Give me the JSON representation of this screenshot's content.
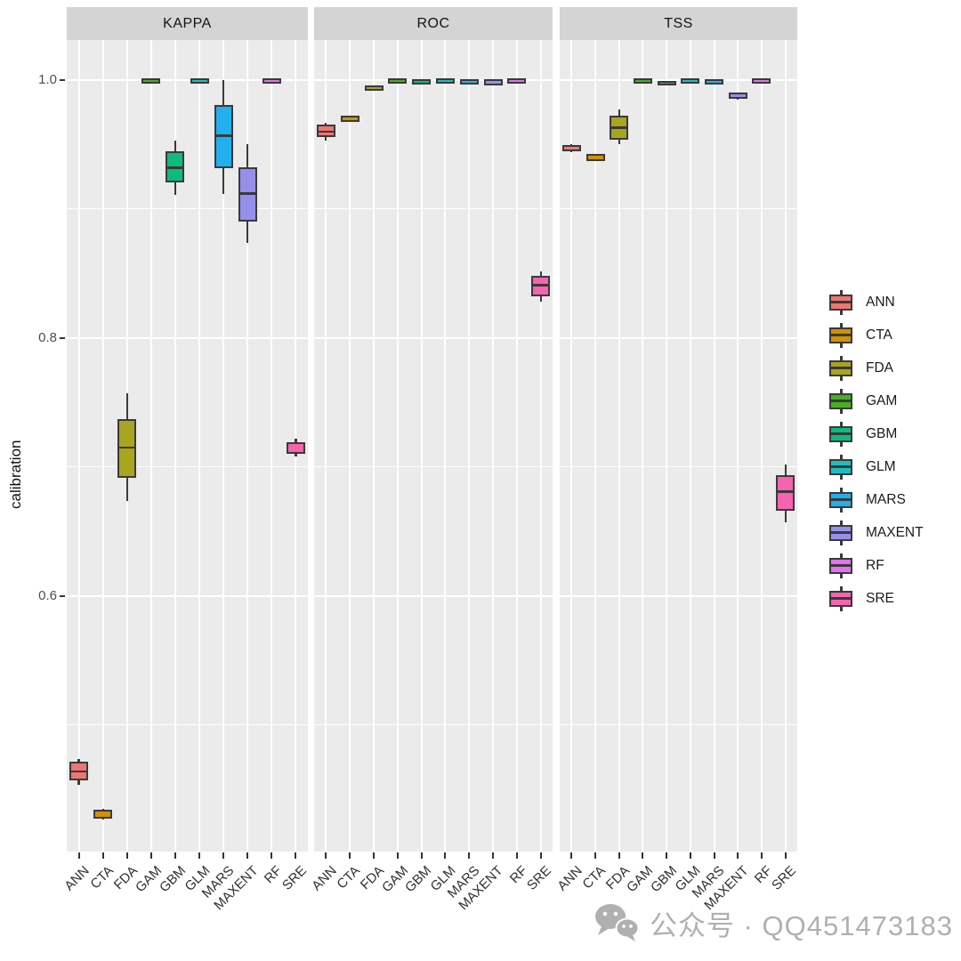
{
  "figure": {
    "y_axis_label": "calibration",
    "y_tick_labels": [
      "1.0",
      "0.8",
      "0.6"
    ],
    "facet_labels": [
      "KAPPA",
      "ROC",
      "TSS"
    ],
    "x_category_labels": [
      "ANN",
      "CTA",
      "FDA",
      "GAM",
      "GBM",
      "GLM",
      "MARS",
      "MAXENT",
      "RF",
      "SRE"
    ]
  },
  "legend": {
    "position": "right",
    "items": [
      {
        "label": "ANN",
        "color": "#EE7572"
      },
      {
        "label": "CTA",
        "color": "#D39200"
      },
      {
        "label": "FDA",
        "color": "#A9A51E"
      },
      {
        "label": "GAM",
        "color": "#47B021"
      },
      {
        "label": "GBM",
        "color": "#0FBA7B"
      },
      {
        "label": "GLM",
        "color": "#1DBEC2"
      },
      {
        "label": "MARS",
        "color": "#23AFEE"
      },
      {
        "label": "MAXENT",
        "color": "#9590EC"
      },
      {
        "label": "RF",
        "color": "#E272EE"
      },
      {
        "label": "SRE",
        "color": "#F564AE"
      }
    ]
  },
  "watermark": {
    "icon": "wechat-icon",
    "text": "公众号 · QQ451473183"
  },
  "colors": {
    "panel_bg": "#EBEBEB",
    "strip_bg": "#D4D4D4",
    "gridline": "#FFFFFF",
    "box_border": "#3A3A3A",
    "axis_text": "#4D4D4D",
    "strip_text": "#141414",
    "watermark_text": "#B0B0B0"
  },
  "chart_data": {
    "type": "boxplot",
    "title": "",
    "xlabel": "",
    "ylabel": "calibration",
    "ylim": [
      0.4,
      1.03
    ],
    "grid": "on",
    "legend_position": "right",
    "y_major_ticks": [
      1.0,
      0.8,
      0.6
    ],
    "y_minor_gridlines": [
      0.9,
      0.7,
      0.5
    ],
    "categories": [
      "ANN",
      "CTA",
      "FDA",
      "GAM",
      "GBM",
      "GLM",
      "MARS",
      "MAXENT",
      "RF",
      "SRE"
    ],
    "facets": [
      {
        "name": "KAPPA",
        "boxes": [
          {
            "model": "ANN",
            "min": 0.454,
            "q1": 0.459,
            "median": 0.464,
            "q3": 0.47,
            "max": 0.474
          },
          {
            "model": "CTA",
            "min": 0.427,
            "q1": 0.429,
            "median": 0.431,
            "q3": 0.433,
            "max": 0.435
          },
          {
            "model": "FDA",
            "min": 0.674,
            "q1": 0.693,
            "median": 0.715,
            "q3": 0.736,
            "max": 0.757
          },
          {
            "model": "GAM",
            "min": 0.998,
            "q1": 0.999,
            "median": 1.0,
            "q3": 1.0,
            "max": 1.0
          },
          {
            "model": "GBM",
            "min": 0.911,
            "q1": 0.922,
            "median": 0.932,
            "q3": 0.943,
            "max": 0.953
          },
          {
            "model": "GLM",
            "min": 0.998,
            "q1": 0.999,
            "median": 1.0,
            "q3": 1.0,
            "max": 1.0
          },
          {
            "model": "MARS",
            "min": 0.912,
            "q1": 0.933,
            "median": 0.957,
            "q3": 0.979,
            "max": 1.0
          },
          {
            "model": "MAXENT",
            "min": 0.874,
            "q1": 0.892,
            "median": 0.912,
            "q3": 0.931,
            "max": 0.95
          },
          {
            "model": "RF",
            "min": 0.998,
            "q1": 0.999,
            "median": 1.0,
            "q3": 1.0,
            "max": 1.0
          },
          {
            "model": "SRE",
            "min": 0.708,
            "q1": 0.712,
            "median": 0.715,
            "q3": 0.718,
            "max": 0.722
          }
        ]
      },
      {
        "name": "ROC",
        "boxes": [
          {
            "model": "ANN",
            "min": 0.953,
            "q1": 0.957,
            "median": 0.96,
            "q3": 0.964,
            "max": 0.967
          },
          {
            "model": "CTA",
            "min": 0.968,
            "q1": 0.969,
            "median": 0.97,
            "q3": 0.971,
            "max": 0.972
          },
          {
            "model": "FDA",
            "min": 0.992,
            "q1": 0.993,
            "median": 0.994,
            "q3": 0.994,
            "max": 0.995
          },
          {
            "model": "GAM",
            "min": 0.998,
            "q1": 0.999,
            "median": 0.999,
            "q3": 1.0,
            "max": 1.0
          },
          {
            "model": "GBM",
            "min": 0.997,
            "q1": 0.998,
            "median": 0.999,
            "q3": 0.999,
            "max": 1.0
          },
          {
            "model": "GLM",
            "min": 0.998,
            "q1": 0.999,
            "median": 1.0,
            "q3": 1.0,
            "max": 1.0
          },
          {
            "model": "MARS",
            "min": 0.997,
            "q1": 0.998,
            "median": 0.999,
            "q3": 0.999,
            "max": 1.0
          },
          {
            "model": "MAXENT",
            "min": 0.996,
            "q1": 0.997,
            "median": 0.998,
            "q3": 0.999,
            "max": 0.999
          },
          {
            "model": "RF",
            "min": 0.999,
            "q1": 0.999,
            "median": 1.0,
            "q3": 1.0,
            "max": 1.0
          },
          {
            "model": "SRE",
            "min": 0.828,
            "q1": 0.834,
            "median": 0.841,
            "q3": 0.847,
            "max": 0.852
          }
        ]
      },
      {
        "name": "TSS",
        "boxes": [
          {
            "model": "ANN",
            "min": 0.944,
            "q1": 0.946,
            "median": 0.947,
            "q3": 0.948,
            "max": 0.95
          },
          {
            "model": "CTA",
            "min": 0.937,
            "q1": 0.939,
            "median": 0.94,
            "q3": 0.941,
            "max": 0.943
          },
          {
            "model": "FDA",
            "min": 0.95,
            "q1": 0.955,
            "median": 0.963,
            "q3": 0.971,
            "max": 0.977
          },
          {
            "model": "GAM",
            "min": 0.998,
            "q1": 0.999,
            "median": 0.999,
            "q3": 1.0,
            "max": 1.0
          },
          {
            "model": "GBM",
            "min": 0.996,
            "q1": 0.997,
            "median": 0.998,
            "q3": 0.998,
            "max": 0.999
          },
          {
            "model": "GLM",
            "min": 0.998,
            "q1": 0.999,
            "median": 1.0,
            "q3": 1.0,
            "max": 1.0
          },
          {
            "model": "MARS",
            "min": 0.997,
            "q1": 0.998,
            "median": 0.999,
            "q3": 0.999,
            "max": 1.0
          },
          {
            "model": "MAXENT",
            "min": 0.985,
            "q1": 0.987,
            "median": 0.988,
            "q3": 0.989,
            "max": 0.99
          },
          {
            "model": "RF",
            "min": 0.999,
            "q1": 0.999,
            "median": 1.0,
            "q3": 1.0,
            "max": 1.0
          },
          {
            "model": "SRE",
            "min": 0.657,
            "q1": 0.668,
            "median": 0.681,
            "q3": 0.692,
            "max": 0.702
          }
        ]
      }
    ]
  }
}
